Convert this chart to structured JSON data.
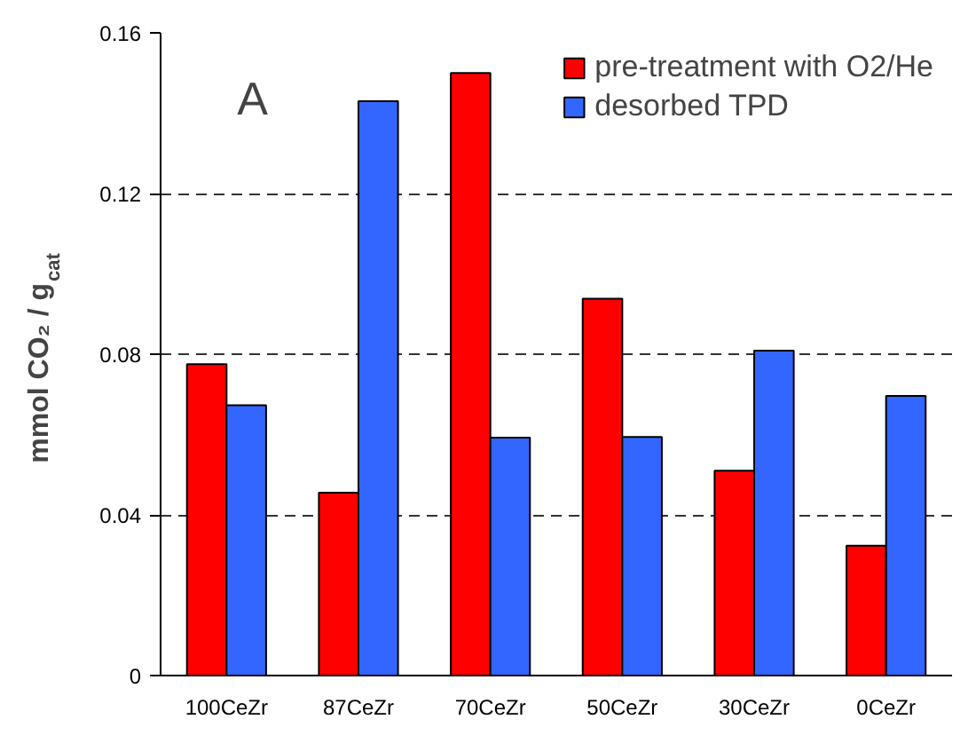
{
  "chart_data": {
    "type": "bar",
    "ylabel": "mmol CO₂ / g$_{cat}$",
    "annotations": [
      "A"
    ],
    "categories": [
      "100CeZr",
      "87CeZr",
      "70CeZr",
      "50CeZr",
      "30CeZr",
      "0CeZr"
    ],
    "series": [
      {
        "name": "pre-treatment with O2/He",
        "color": "#ff0000",
        "values": [
          0.0775,
          0.0455,
          0.15,
          0.0938,
          0.051,
          0.0323
        ]
      },
      {
        "name": "desorbed TPD",
        "color": "#3366ff",
        "values": [
          0.0673,
          0.143,
          0.0592,
          0.0594,
          0.0809,
          0.0696
        ]
      }
    ],
    "ylim": [
      0,
      0.16
    ],
    "yticks": [
      0,
      0.04,
      0.08,
      0.12,
      0.16
    ],
    "grid": "y",
    "legend": "top right"
  }
}
